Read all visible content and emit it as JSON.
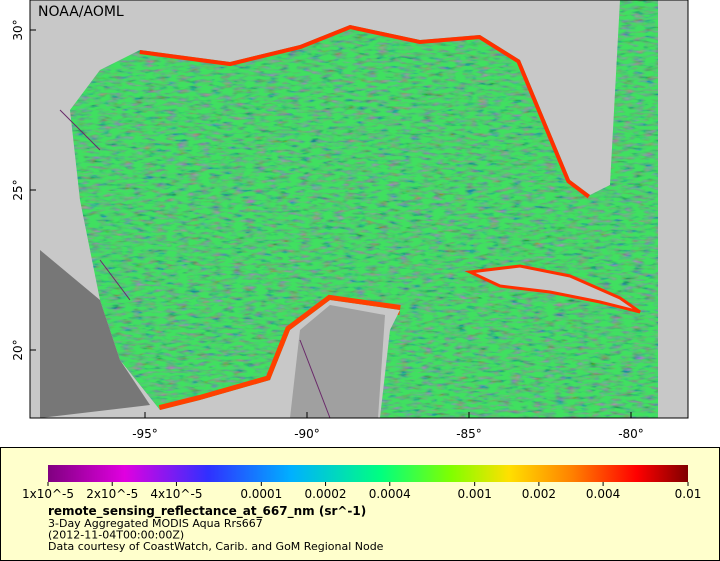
{
  "map": {
    "source_label": "NOAA/AOML",
    "lat_ticks": [
      {
        "value": 30,
        "label": "30°"
      },
      {
        "value": 25,
        "label": "25°"
      },
      {
        "value": 20,
        "label": "20°"
      }
    ],
    "lon_ticks": [
      {
        "value": -95,
        "label": "-95°"
      },
      {
        "value": -90,
        "label": "-90°"
      },
      {
        "value": -85,
        "label": "-85°"
      },
      {
        "value": -80,
        "label": "-80°"
      }
    ]
  },
  "colorbar": {
    "range": [
      1e-05,
      0.01
    ],
    "log": true,
    "ticks": [
      {
        "value": 1e-05,
        "label": "1x10^-5"
      },
      {
        "value": 2e-05,
        "label": "2x10^-5"
      },
      {
        "value": 4e-05,
        "label": "4x10^-5"
      },
      0.0001,
      0.0002,
      0.0004,
      0.001,
      0.002,
      0.004,
      0.01
    ]
  },
  "legend": {
    "variable": "remote_sensing_reflectance_at_667_nm (sr^-1)",
    "lines": [
      "3-Day Aggregated MODIS Aqua Rrs667",
      "(2012-11-04T00:00:00Z)",
      "Data courtesy of CoastWatch, Carib. and GoM Regional Node"
    ]
  }
}
